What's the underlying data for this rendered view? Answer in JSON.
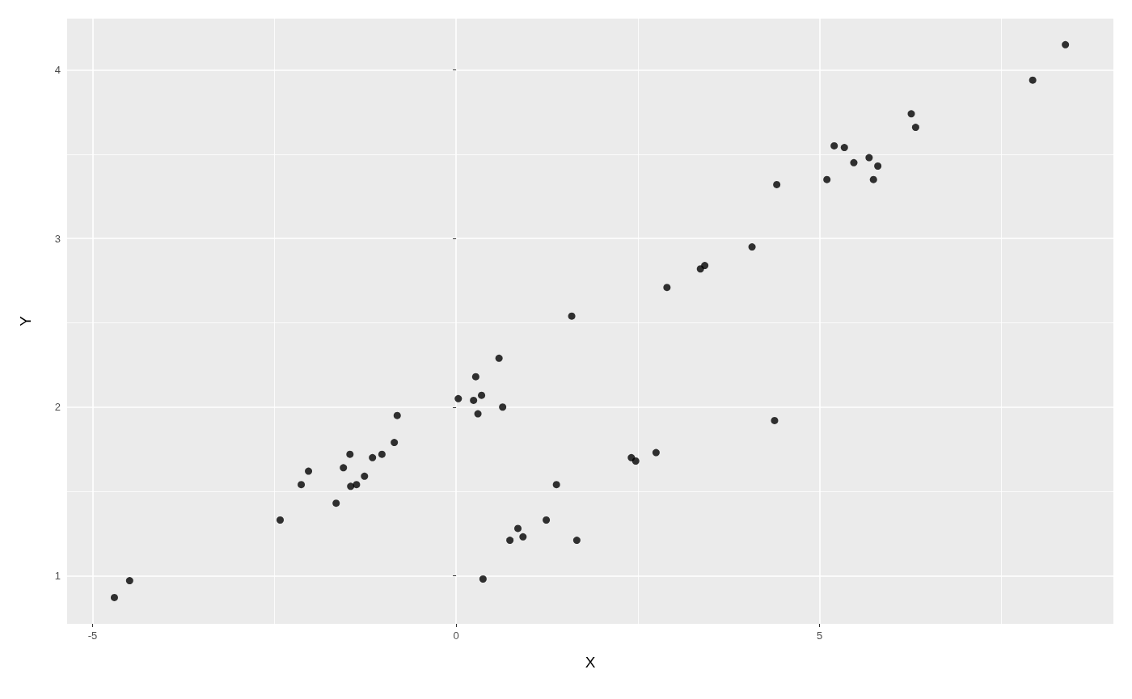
{
  "chart_data": {
    "type": "scatter",
    "xlabel": "X",
    "ylabel": "Y",
    "xlim": [
      -5.35,
      9.04
    ],
    "ylim": [
      0.714,
      4.305
    ],
    "xticks": [
      -5,
      {
        "value": -2.5,
        "label": null
      },
      0,
      {
        "value": 2.5,
        "label": null
      },
      5,
      {
        "value": 7.5,
        "label": null
      }
    ],
    "yticks": [
      1,
      {
        "value": 1.5,
        "label": null
      },
      2,
      {
        "value": 2.5,
        "label": null
      },
      3,
      {
        "value": 3.5,
        "label": null
      },
      4
    ],
    "grid": true,
    "marker": "circle",
    "series": [
      {
        "color": "#000000",
        "x": [
          -4.7,
          -4.49,
          -2.42,
          -2.13,
          -2.03,
          -1.65,
          -1.55,
          -1.46,
          -1.45,
          -1.37,
          -1.26,
          -1.15,
          -1.02,
          -0.85,
          -0.81,
          0.03,
          0.24,
          0.27,
          0.3,
          0.35,
          0.37,
          0.59,
          0.64,
          0.74,
          0.85,
          0.92,
          1.24,
          1.38,
          1.59,
          1.66,
          2.41,
          2.47,
          2.75,
          2.9,
          3.36,
          3.42,
          4.07,
          4.38,
          4.41,
          5.1,
          5.2,
          5.34,
          5.47,
          5.68,
          5.74,
          5.8,
          6.26,
          6.32,
          7.93,
          8.38
        ],
        "values": [
          0.87,
          0.97,
          1.33,
          1.54,
          1.62,
          1.43,
          1.64,
          1.72,
          1.53,
          1.54,
          1.59,
          1.7,
          1.72,
          1.79,
          1.95,
          2.05,
          2.04,
          2.18,
          1.96,
          2.07,
          0.98,
          2.29,
          2.0,
          1.21,
          1.28,
          1.23,
          1.33,
          1.54,
          2.54,
          1.21,
          1.7,
          1.68,
          1.73,
          2.71,
          2.82,
          2.84,
          2.95,
          1.92,
          3.32,
          3.35,
          3.55,
          3.54,
          3.45,
          3.48,
          3.35,
          3.43,
          3.74,
          3.66,
          3.94,
          4.15
        ]
      }
    ]
  }
}
